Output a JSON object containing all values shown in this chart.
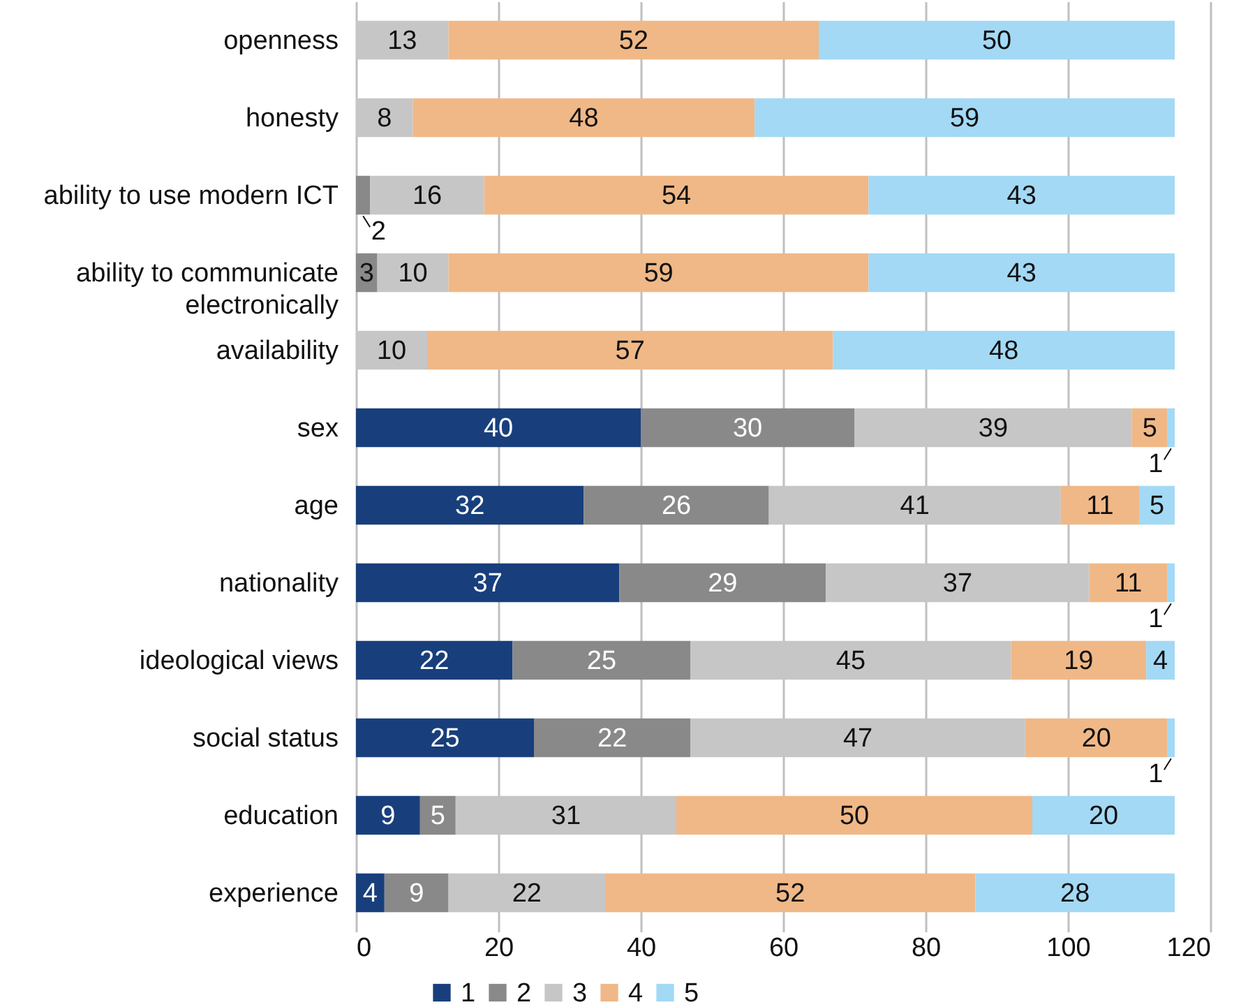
{
  "chart_data": {
    "type": "bar",
    "orientation": "horizontal",
    "stacked": true,
    "categories": [
      "openness",
      "honesty",
      "ability to use modern ICT",
      "ability to communicate electronically",
      "availability",
      "sex",
      "age",
      "nationality",
      "ideological views",
      "social status",
      "education",
      "experience"
    ],
    "series": [
      {
        "name": "1",
        "color": "#183f7c",
        "values": [
          null,
          null,
          null,
          null,
          null,
          40,
          32,
          37,
          22,
          25,
          9,
          4
        ]
      },
      {
        "name": "2",
        "color": "#898989",
        "values": [
          null,
          null,
          2,
          3,
          null,
          30,
          26,
          29,
          25,
          22,
          5,
          9
        ]
      },
      {
        "name": "3",
        "color": "#c6c6c6",
        "values": [
          13,
          8,
          16,
          10,
          10,
          39,
          41,
          37,
          45,
          47,
          31,
          22
        ]
      },
      {
        "name": "4",
        "color": "#f0b887",
        "values": [
          52,
          48,
          54,
          59,
          57,
          5,
          11,
          11,
          19,
          20,
          50,
          52
        ]
      },
      {
        "name": "5",
        "color": "#a3d9f5",
        "values": [
          50,
          59,
          43,
          43,
          48,
          1,
          5,
          1,
          4,
          1,
          20,
          28
        ]
      }
    ],
    "xlim": [
      0,
      120
    ],
    "xticks": [
      0,
      20,
      40,
      60,
      80,
      100,
      120
    ],
    "grid": "x",
    "legend": "bottom",
    "data_labels": true
  }
}
